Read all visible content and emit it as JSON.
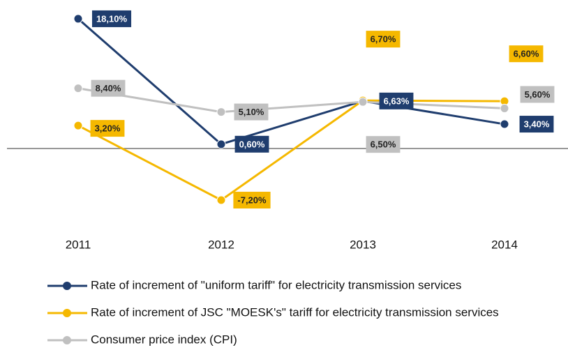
{
  "chart_data": {
    "type": "line",
    "categories": [
      "2011",
      "2012",
      "2013",
      "2014"
    ],
    "series": [
      {
        "name": "Rate of increment of \"uniform tariff\" for electricity transmission services",
        "color": "#1f3d6e",
        "values": [
          18.1,
          0.6,
          6.63,
          3.4
        ],
        "value_labels": [
          "18,10%",
          "0,60%",
          "6,63%",
          "3,40%"
        ]
      },
      {
        "name": "Rate of increment of JSC \"MOESK's\" tariff for electricity transmission services",
        "color": "#f5b800",
        "values": [
          3.2,
          -7.2,
          6.7,
          6.6
        ],
        "value_labels": [
          "3,20%",
          "-7,20%",
          "6,70%",
          "6,60%"
        ]
      },
      {
        "name": "Consumer price index (CPI)",
        "color": "#c0c0c0",
        "values": [
          8.4,
          5.1,
          6.5,
          5.6
        ],
        "value_labels": [
          "8,40%",
          "5,10%",
          "6,50%",
          "5,60%"
        ]
      }
    ]
  }
}
